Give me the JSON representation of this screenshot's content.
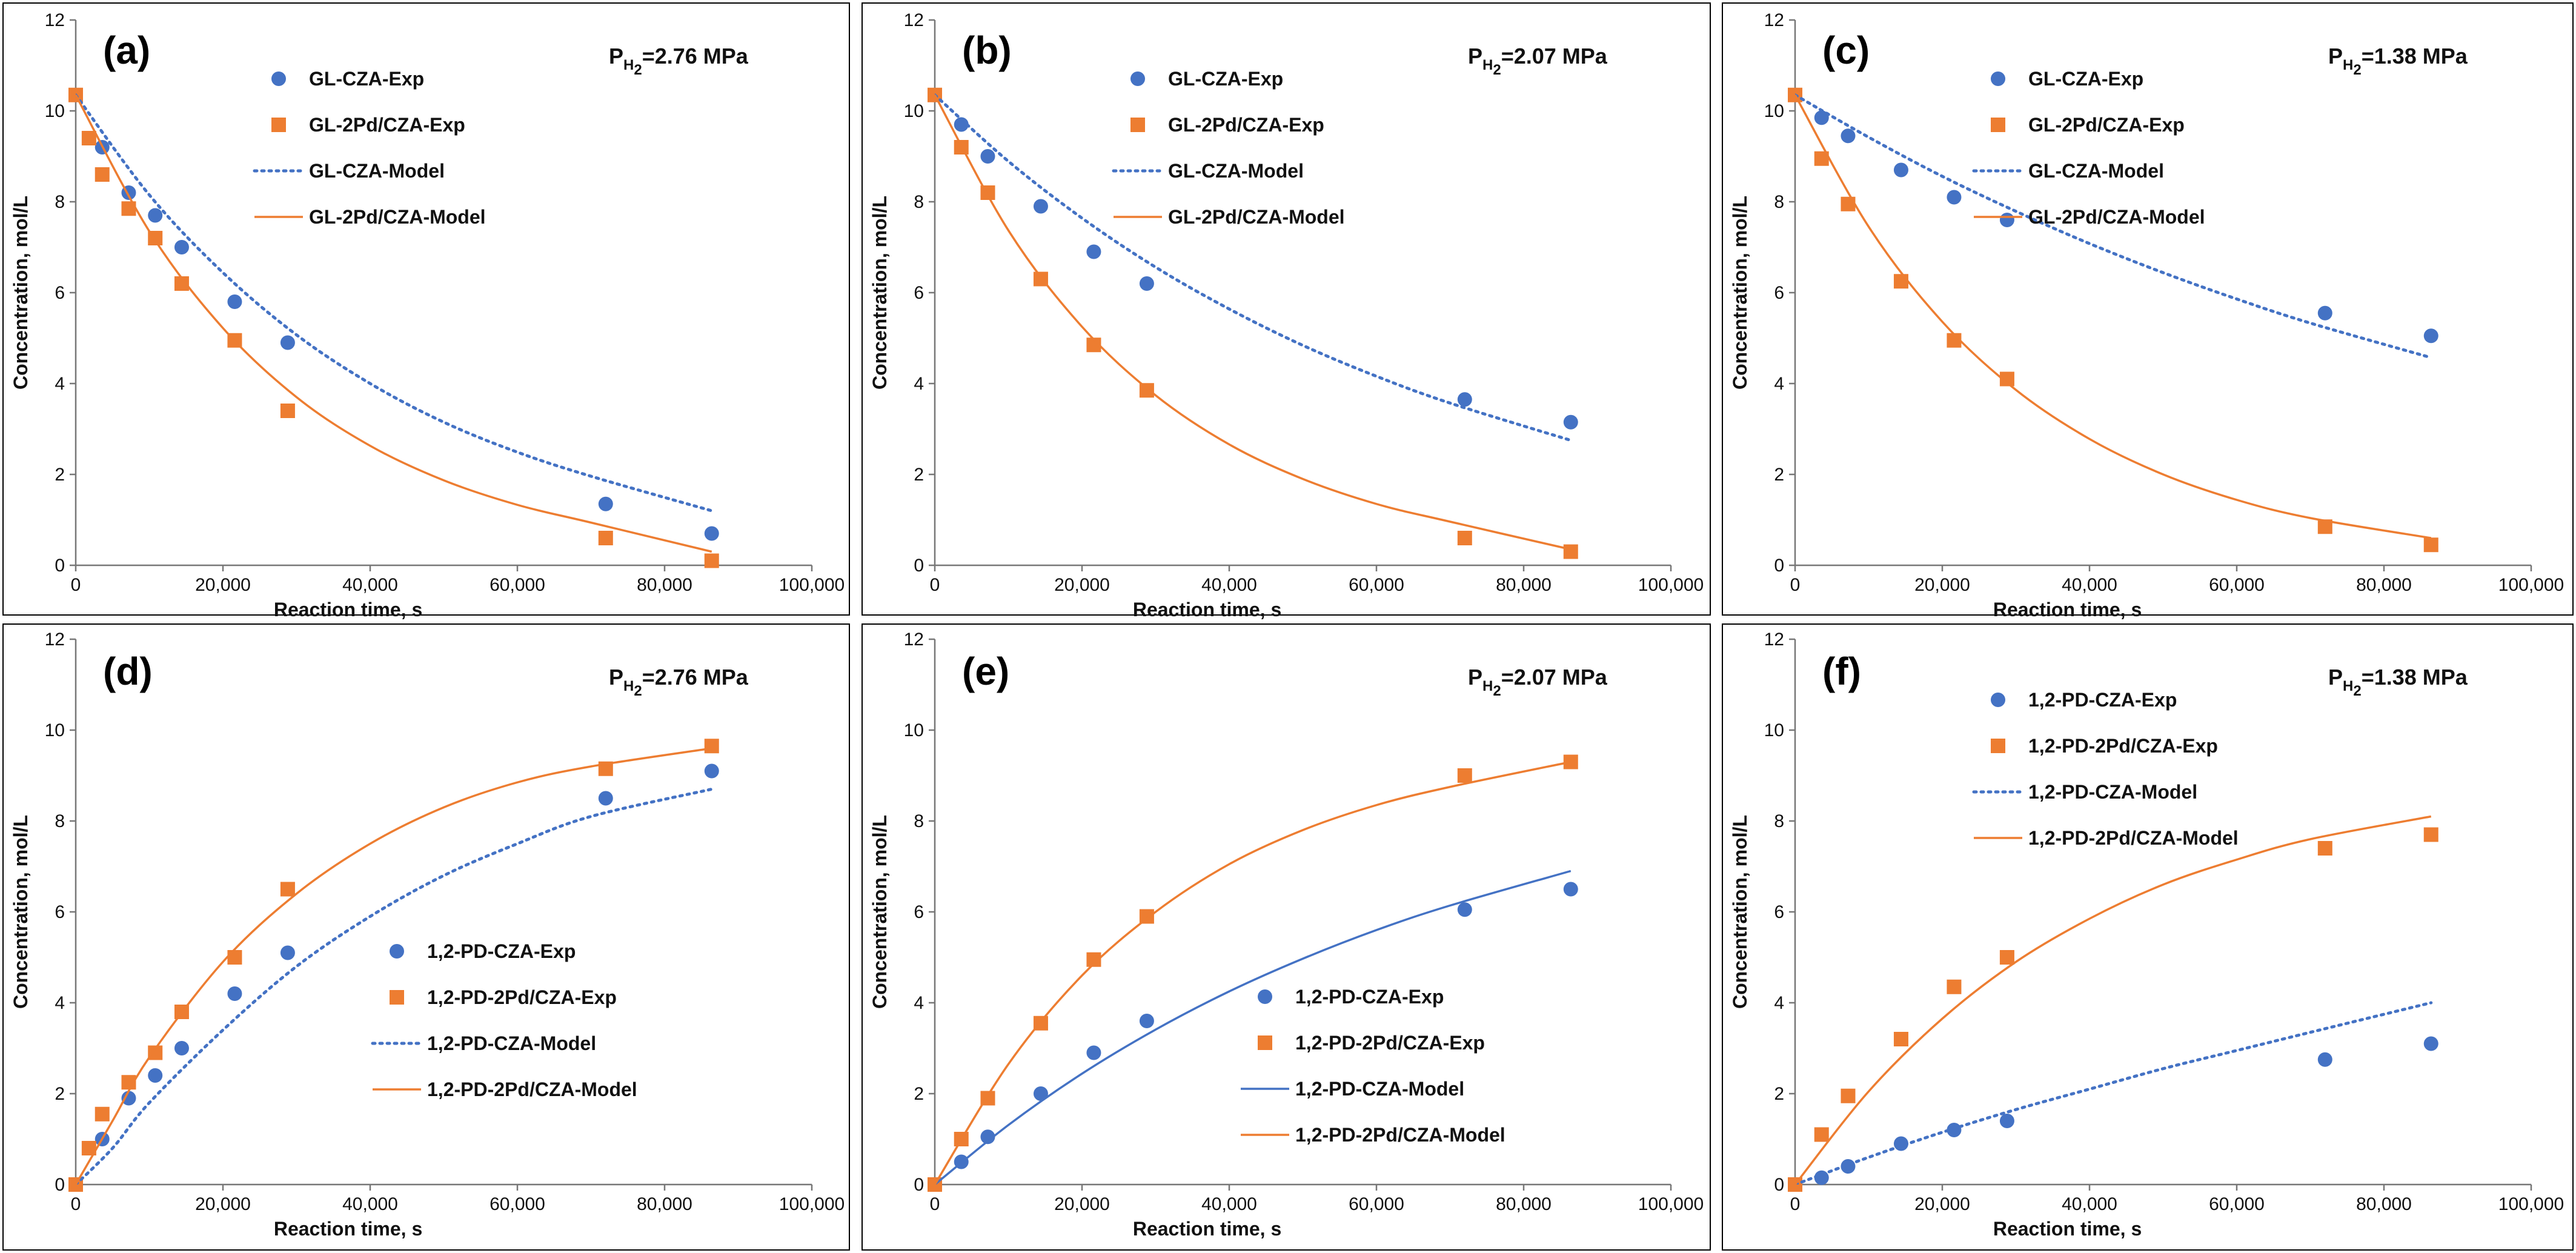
{
  "colors": {
    "blue": "#4472C4",
    "orange": "#ED7D31"
  },
  "chart_data": [
    {
      "type": "scatter",
      "panel": "(a)",
      "pressure_prefix": "P",
      "pressure_sub": "H",
      "pressure_sub2": "2",
      "pressure_value": "=2.76 MPa",
      "xlabel": "Reaction time, s",
      "ylabel": "Concentration, mol/L",
      "xlim": [
        0,
        100000
      ],
      "ylim": [
        0,
        12
      ],
      "xticks": [
        0,
        20000,
        40000,
        60000,
        80000,
        100000
      ],
      "xtick_labels": [
        "0",
        "20,000",
        "40,000",
        "60,000",
        "80,000",
        "100,000"
      ],
      "yticks": [
        0,
        2,
        4,
        6,
        8,
        10,
        12
      ],
      "ytick_labels": [
        "0",
        "2",
        "4",
        "6",
        "8",
        "10",
        "12"
      ],
      "legend_position": "top-center",
      "series": [
        {
          "name": "GL-CZA-Exp",
          "kind": "marker",
          "marker": "circle",
          "color": "blue",
          "x": [
            0,
            3600,
            7200,
            10800,
            14400,
            21600,
            28800,
            72000,
            86400
          ],
          "y": [
            10.35,
            9.2,
            8.2,
            7.7,
            7.0,
            5.8,
            4.9,
            1.35,
            0.7
          ]
        },
        {
          "name": "GL-2Pd/CZA-Exp",
          "kind": "marker",
          "marker": "square",
          "color": "orange",
          "x": [
            0,
            1800,
            3600,
            7200,
            10800,
            14400,
            21600,
            28800,
            72000,
            86400
          ],
          "y": [
            10.35,
            9.4,
            8.6,
            7.85,
            7.2,
            6.2,
            4.95,
            3.4,
            0.6,
            0.1
          ]
        },
        {
          "name": "GL-CZA-Model",
          "kind": "line",
          "dash": "dotted",
          "color": "blue",
          "x": [
            0,
            10000,
            20000,
            30000,
            40000,
            50000,
            60000,
            70000,
            86400
          ],
          "y": [
            10.35,
            8.15,
            6.44,
            5.07,
            4.0,
            3.15,
            2.49,
            1.96,
            1.2
          ]
        },
        {
          "name": "GL-2Pd/CZA-Model",
          "kind": "line",
          "dash": "solid",
          "color": "orange",
          "x": [
            0,
            10000,
            20000,
            30000,
            40000,
            50000,
            60000,
            70000,
            86400
          ],
          "y": [
            10.35,
            7.35,
            5.22,
            3.7,
            2.63,
            1.87,
            1.33,
            0.94,
            0.3
          ]
        }
      ]
    },
    {
      "type": "scatter",
      "panel": "(b)",
      "pressure_prefix": "P",
      "pressure_sub": "H",
      "pressure_sub2": "2",
      "pressure_value": "=2.07 MPa",
      "xlabel": "Reaction time, s",
      "ylabel": "Concentration, mol/L",
      "xlim": [
        0,
        100000
      ],
      "ylim": [
        0,
        12
      ],
      "xticks": [
        0,
        20000,
        40000,
        60000,
        80000,
        100000
      ],
      "xtick_labels": [
        "0",
        "20,000",
        "40,000",
        "60,000",
        "80,000",
        "100,000"
      ],
      "yticks": [
        0,
        2,
        4,
        6,
        8,
        10,
        12
      ],
      "ytick_labels": [
        "0",
        "2",
        "4",
        "6",
        "8",
        "10",
        "12"
      ],
      "legend_position": "top-center",
      "series": [
        {
          "name": "GL-CZA-Exp",
          "kind": "marker",
          "marker": "circle",
          "color": "blue",
          "x": [
            0,
            3600,
            7200,
            14400,
            21600,
            28800,
            72000,
            86400
          ],
          "y": [
            10.35,
            9.7,
            9.0,
            7.9,
            6.9,
            6.2,
            3.65,
            3.15
          ]
        },
        {
          "name": "GL-2Pd/CZA-Exp",
          "kind": "marker",
          "marker": "square",
          "color": "orange",
          "x": [
            0,
            3600,
            7200,
            14400,
            21600,
            28800,
            72000,
            86400
          ],
          "y": [
            10.35,
            9.2,
            8.2,
            6.3,
            4.85,
            3.85,
            0.6,
            0.3
          ]
        },
        {
          "name": "GL-CZA-Model",
          "kind": "line",
          "dash": "dotted",
          "color": "blue",
          "x": [
            0,
            10000,
            20000,
            30000,
            40000,
            50000,
            60000,
            70000,
            86400
          ],
          "y": [
            10.35,
            8.89,
            7.64,
            6.56,
            5.64,
            4.84,
            4.16,
            3.57,
            2.75
          ]
        },
        {
          "name": "GL-2Pd/CZA-Model",
          "kind": "line",
          "dash": "solid",
          "color": "orange",
          "x": [
            0,
            10000,
            20000,
            30000,
            40000,
            50000,
            60000,
            70000,
            86400
          ],
          "y": [
            10.35,
            7.37,
            5.25,
            3.74,
            2.66,
            1.9,
            1.35,
            0.96,
            0.35
          ]
        }
      ]
    },
    {
      "type": "scatter",
      "panel": "(c)",
      "pressure_prefix": "P",
      "pressure_sub": "H",
      "pressure_sub2": "2",
      "pressure_value": "=1.38 MPa",
      "xlabel": "Reaction time, s",
      "ylabel": "Concentration, mol/L",
      "xlim": [
        0,
        100000
      ],
      "ylim": [
        0,
        12
      ],
      "xticks": [
        0,
        20000,
        40000,
        60000,
        80000,
        100000
      ],
      "xtick_labels": [
        "0",
        "20,000",
        "40,000",
        "60,000",
        "80,000",
        "100,000"
      ],
      "yticks": [
        0,
        2,
        4,
        6,
        8,
        10,
        12
      ],
      "ytick_labels": [
        "0",
        "2",
        "4",
        "6",
        "8",
        "10",
        "12"
      ],
      "legend_position": "top-center",
      "series": [
        {
          "name": "GL-CZA-Exp",
          "kind": "marker",
          "marker": "circle",
          "color": "blue",
          "x": [
            0,
            3600,
            7200,
            14400,
            21600,
            28800,
            72000,
            86400
          ],
          "y": [
            10.35,
            9.85,
            9.45,
            8.7,
            8.1,
            7.6,
            5.55,
            5.05
          ]
        },
        {
          "name": "GL-2Pd/CZA-Exp",
          "kind": "marker",
          "marker": "square",
          "color": "orange",
          "x": [
            0,
            3600,
            7200,
            14400,
            21600,
            28800,
            72000,
            86400
          ],
          "y": [
            10.35,
            8.95,
            7.95,
            6.25,
            4.95,
            4.1,
            0.85,
            0.45
          ]
        },
        {
          "name": "GL-CZA-Model",
          "kind": "line",
          "dash": "dotted",
          "color": "blue",
          "x": [
            0,
            10000,
            20000,
            30000,
            40000,
            50000,
            60000,
            70000,
            86400
          ],
          "y": [
            10.35,
            9.42,
            8.56,
            7.79,
            7.08,
            6.44,
            5.86,
            5.33,
            4.57
          ]
        },
        {
          "name": "GL-2Pd/CZA-Model",
          "kind": "line",
          "dash": "solid",
          "color": "orange",
          "x": [
            0,
            10000,
            20000,
            30000,
            40000,
            50000,
            60000,
            70000,
            86400
          ],
          "y": [
            10.35,
            7.45,
            5.36,
            3.86,
            2.78,
            2.0,
            1.44,
            1.04,
            0.6
          ]
        }
      ]
    },
    {
      "type": "scatter",
      "panel": "(d)",
      "pressure_prefix": "P",
      "pressure_sub": "H",
      "pressure_sub2": "2",
      "pressure_value": "=2.76 MPa",
      "xlabel": "Reaction time, s",
      "ylabel": "Concentration, mol/L",
      "xlim": [
        0,
        100000
      ],
      "ylim": [
        0,
        12
      ],
      "xticks": [
        0,
        20000,
        40000,
        60000,
        80000,
        100000
      ],
      "xtick_labels": [
        "0",
        "20,000",
        "40,000",
        "60,000",
        "80,000",
        "100,000"
      ],
      "yticks": [
        0,
        2,
        4,
        6,
        8,
        10,
        12
      ],
      "ytick_labels": [
        "0",
        "2",
        "4",
        "6",
        "8",
        "10",
        "12"
      ],
      "legend_position": "center",
      "series": [
        {
          "name": "1,2-PD-CZA-Exp",
          "kind": "marker",
          "marker": "circle",
          "color": "blue",
          "x": [
            0,
            3600,
            7200,
            10800,
            14400,
            21600,
            28800,
            72000,
            86400
          ],
          "y": [
            0,
            1.0,
            1.9,
            2.4,
            3.0,
            4.2,
            5.1,
            8.5,
            9.1
          ]
        },
        {
          "name": "1,2-PD-2Pd/CZA-Exp",
          "kind": "marker",
          "marker": "square",
          "color": "orange",
          "x": [
            0,
            1800,
            3600,
            7200,
            10800,
            14400,
            21600,
            28800,
            72000,
            86400
          ],
          "y": [
            0,
            0.8,
            1.55,
            2.25,
            2.9,
            3.8,
            5.0,
            6.5,
            9.15,
            9.65
          ]
        },
        {
          "name": "1,2-PD-CZA-Model",
          "kind": "line",
          "dash": "dotted",
          "color": "blue",
          "x": [
            0,
            5000,
            10000,
            20000,
            30000,
            40000,
            50000,
            60000,
            70000,
            86400
          ],
          "y": [
            0,
            0.8,
            1.8,
            3.4,
            4.8,
            5.9,
            6.8,
            7.5,
            8.1,
            8.7
          ]
        },
        {
          "name": "1,2-PD-2Pd/CZA-Model",
          "kind": "line",
          "dash": "solid",
          "color": "orange",
          "x": [
            0,
            5000,
            10000,
            20000,
            30000,
            40000,
            50000,
            60000,
            70000,
            86400
          ],
          "y": [
            0,
            1.4,
            2.8,
            4.9,
            6.4,
            7.5,
            8.3,
            8.85,
            9.2,
            9.6
          ]
        }
      ]
    },
    {
      "type": "scatter",
      "panel": "(e)",
      "pressure_prefix": "P",
      "pressure_sub": "H",
      "pressure_sub2": "2",
      "pressure_value": "=2.07 MPa",
      "xlabel": "Reaction time, s",
      "ylabel": "Concentration, mol/L",
      "xlim": [
        0,
        100000
      ],
      "ylim": [
        0,
        12
      ],
      "xticks": [
        0,
        20000,
        40000,
        60000,
        80000,
        100000
      ],
      "xtick_labels": [
        "0",
        "20,000",
        "40,000",
        "60,000",
        "80,000",
        "100,000"
      ],
      "yticks": [
        0,
        2,
        4,
        6,
        8,
        10,
        12
      ],
      "ytick_labels": [
        "0",
        "2",
        "4",
        "6",
        "8",
        "10",
        "12"
      ],
      "legend_position": "bottom-center",
      "series": [
        {
          "name": "1,2-PD-CZA-Exp",
          "kind": "marker",
          "marker": "circle",
          "color": "blue",
          "x": [
            0,
            3600,
            7200,
            14400,
            21600,
            28800,
            72000,
            86400
          ],
          "y": [
            0,
            0.5,
            1.05,
            2.0,
            2.9,
            3.6,
            6.05,
            6.5
          ]
        },
        {
          "name": "1,2-PD-2Pd/CZA-Exp",
          "kind": "marker",
          "marker": "square",
          "color": "orange",
          "x": [
            0,
            3600,
            7200,
            14400,
            21600,
            28800,
            72000,
            86400
          ],
          "y": [
            0,
            1.0,
            1.9,
            3.55,
            4.95,
            5.9,
            9.0,
            9.3
          ]
        },
        {
          "name": "1,2-PD-CZA-Model",
          "kind": "line",
          "dash": "solid",
          "color": "blue",
          "x": [
            0,
            10000,
            20000,
            30000,
            40000,
            50000,
            60000,
            70000,
            86400
          ],
          "y": [
            0,
            1.31,
            2.44,
            3.41,
            4.25,
            4.97,
            5.6,
            6.14,
            6.9
          ]
        },
        {
          "name": "1,2-PD-2Pd/CZA-Model",
          "kind": "line",
          "dash": "solid",
          "color": "orange",
          "x": [
            0,
            10000,
            20000,
            30000,
            40000,
            50000,
            60000,
            70000,
            86400
          ],
          "y": [
            0,
            2.65,
            4.6,
            6.0,
            7.05,
            7.8,
            8.35,
            8.75,
            9.3
          ]
        }
      ]
    },
    {
      "type": "scatter",
      "panel": "(f)",
      "pressure_prefix": "P",
      "pressure_sub": "H",
      "pressure_sub2": "2",
      "pressure_value": "=1.38 MPa",
      "xlabel": "Reaction time, s",
      "ylabel": "Concentration, mol/L",
      "xlim": [
        0,
        100000
      ],
      "ylim": [
        0,
        12
      ],
      "xticks": [
        0,
        20000,
        40000,
        60000,
        80000,
        100000
      ],
      "xtick_labels": [
        "0",
        "20,000",
        "40,000",
        "60,000",
        "80,000",
        "100,000"
      ],
      "yticks": [
        0,
        2,
        4,
        6,
        8,
        10,
        12
      ],
      "ytick_labels": [
        "0",
        "2",
        "4",
        "6",
        "8",
        "10",
        "12"
      ],
      "legend_position": "top-center",
      "series": [
        {
          "name": "1,2-PD-CZA-Exp",
          "kind": "marker",
          "marker": "circle",
          "color": "blue",
          "x": [
            0,
            3600,
            7200,
            14400,
            21600,
            28800,
            72000,
            86400
          ],
          "y": [
            0,
            0.15,
            0.4,
            0.9,
            1.2,
            1.4,
            2.75,
            3.1
          ]
        },
        {
          "name": "1,2-PD-2Pd/CZA-Exp",
          "kind": "marker",
          "marker": "square",
          "color": "orange",
          "x": [
            0,
            3600,
            7200,
            14400,
            21600,
            28800,
            72000,
            86400
          ],
          "y": [
            0,
            1.1,
            1.95,
            3.2,
            4.35,
            5.0,
            7.4,
            7.7
          ]
        },
        {
          "name": "1,2-PD-CZA-Model",
          "kind": "line",
          "dash": "dotted",
          "color": "blue",
          "x": [
            0,
            10000,
            20000,
            30000,
            40000,
            50000,
            60000,
            70000,
            86400
          ],
          "y": [
            0,
            0.6,
            1.15,
            1.65,
            2.1,
            2.55,
            2.95,
            3.35,
            4.0
          ]
        },
        {
          "name": "1,2-PD-2Pd/CZA-Model",
          "kind": "line",
          "dash": "solid",
          "color": "orange",
          "x": [
            0,
            10000,
            20000,
            30000,
            40000,
            50000,
            60000,
            70000,
            86400
          ],
          "y": [
            0,
            2.05,
            3.65,
            4.9,
            5.85,
            6.6,
            7.15,
            7.6,
            8.1
          ]
        }
      ]
    }
  ]
}
